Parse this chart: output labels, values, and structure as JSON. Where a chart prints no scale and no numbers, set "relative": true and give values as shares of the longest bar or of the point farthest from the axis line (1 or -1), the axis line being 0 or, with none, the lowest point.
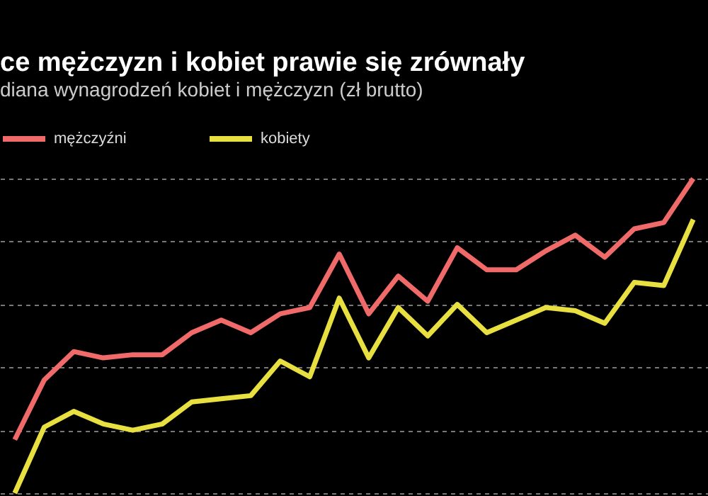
{
  "chart_data": {
    "type": "line",
    "title": "ce mężczyzn i kobiet prawie się zrównały",
    "subtitle": "diana wynagrodzeń kobiet i mężczyzn (zł brutto)",
    "categories": [
      null,
      null,
      null,
      null,
      null,
      null,
      null,
      null,
      null,
      null,
      null,
      null,
      null,
      null,
      null,
      null,
      null,
      null,
      null,
      null,
      null,
      null,
      null,
      null
    ],
    "relative": true,
    "grid": "y",
    "legend": "top left",
    "marker": "none",
    "line_style": "solid",
    "series": [
      {
        "name": "mężczyźni",
        "color": "#f06a6a",
        "values": [
          0.17,
          0.36,
          0.45,
          0.43,
          0.44,
          0.44,
          0.51,
          0.55,
          0.51,
          0.57,
          0.59,
          0.76,
          0.57,
          0.69,
          0.61,
          0.78,
          0.71,
          0.71,
          0.77,
          0.82,
          0.75,
          0.84,
          0.86,
          1
        ]
      },
      {
        "name": "kobiety",
        "color": "#e8e040",
        "values": [
          0,
          0.21,
          0.26,
          0.22,
          0.2,
          0.22,
          0.29,
          0.3,
          0.31,
          0.42,
          0.37,
          0.62,
          0.43,
          0.59,
          0.5,
          0.6,
          0.51,
          0.55,
          0.59,
          0.58,
          0.54,
          0.67,
          0.66,
          0.87
        ]
      }
    ]
  }
}
